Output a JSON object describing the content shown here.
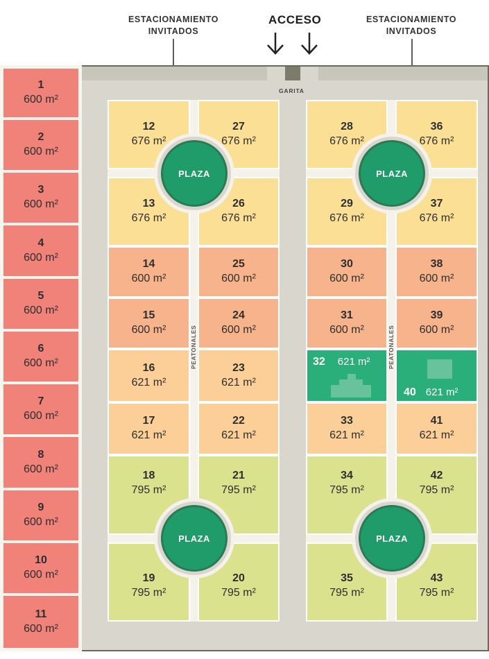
{
  "header": {
    "parking_left": "ESTACIONAMIENTO\nINVITADOS",
    "parking_right": "ESTACIONAMIENTO\nINVITADOS",
    "access": "ACCESO",
    "gate": "GARITA"
  },
  "labels": {
    "plaza": "PLAZA",
    "walkway": "PEATONALES"
  },
  "colors": {
    "pink": "#f0827a",
    "yellow": "#fbdf94",
    "orange": "#f7b38b",
    "light_orange": "#fbcf97",
    "green": "#dbe28d",
    "teal": "#2aae7a",
    "plaza": "#1f9c6a"
  },
  "lots": {
    "l1": {
      "n": "1",
      "a": "600 m²"
    },
    "l2": {
      "n": "2",
      "a": "600 m²"
    },
    "l3": {
      "n": "3",
      "a": "600 m²"
    },
    "l4": {
      "n": "4",
      "a": "600 m²"
    },
    "l5": {
      "n": "5",
      "a": "600 m²"
    },
    "l6": {
      "n": "6",
      "a": "600 m²"
    },
    "l7": {
      "n": "7",
      "a": "600 m²"
    },
    "l8": {
      "n": "8",
      "a": "600 m²"
    },
    "l9": {
      "n": "9",
      "a": "600 m²"
    },
    "l10": {
      "n": "10",
      "a": "600 m²"
    },
    "l11": {
      "n": "11",
      "a": "600 m²"
    },
    "l12": {
      "n": "12",
      "a": "676 m²"
    },
    "l13": {
      "n": "13",
      "a": "676 m²"
    },
    "l14": {
      "n": "14",
      "a": "600 m²"
    },
    "l15": {
      "n": "15",
      "a": "600 m²"
    },
    "l16": {
      "n": "16",
      "a": "621 m²"
    },
    "l17": {
      "n": "17",
      "a": "621 m²"
    },
    "l18": {
      "n": "18",
      "a": "795 m²"
    },
    "l19": {
      "n": "19",
      "a": "795 m²"
    },
    "l20": {
      "n": "20",
      "a": "795 m²"
    },
    "l21": {
      "n": "21",
      "a": "795 m²"
    },
    "l22": {
      "n": "22",
      "a": "621 m²"
    },
    "l23": {
      "n": "23",
      "a": "621 m²"
    },
    "l24": {
      "n": "24",
      "a": "600 m²"
    },
    "l25": {
      "n": "25",
      "a": "600 m²"
    },
    "l26": {
      "n": "26",
      "a": "676 m²"
    },
    "l27": {
      "n": "27",
      "a": "676 m²"
    },
    "l28": {
      "n": "28",
      "a": "676 m²"
    },
    "l29": {
      "n": "29",
      "a": "676 m²"
    },
    "l30": {
      "n": "30",
      "a": "600 m²"
    },
    "l31": {
      "n": "31",
      "a": "600 m²"
    },
    "l32": {
      "n": "32",
      "a": "621 m²"
    },
    "l33": {
      "n": "33",
      "a": "621 m²"
    },
    "l34": {
      "n": "34",
      "a": "795 m²"
    },
    "l35": {
      "n": "35",
      "a": "795 m²"
    },
    "l36": {
      "n": "36",
      "a": "676 m²"
    },
    "l37": {
      "n": "37",
      "a": "676 m²"
    },
    "l38": {
      "n": "38",
      "a": "600 m²"
    },
    "l39": {
      "n": "39",
      "a": "600 m²"
    },
    "l40": {
      "n": "40",
      "a": "621 m²"
    },
    "l41": {
      "n": "41",
      "a": "621 m²"
    },
    "l42": {
      "n": "42",
      "a": "795 m²"
    },
    "l43": {
      "n": "43",
      "a": "795 m²"
    }
  }
}
